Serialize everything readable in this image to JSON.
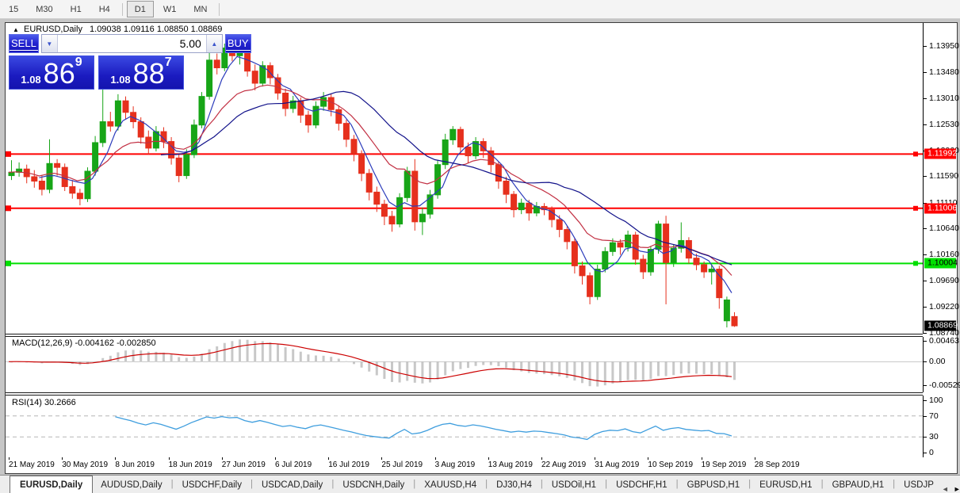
{
  "toolbar": {
    "timeframes": [
      "15",
      "M30",
      "H1",
      "H4",
      "D1",
      "W1",
      "MN"
    ],
    "active": "D1"
  },
  "chart": {
    "symbol_label": "EURUSD,Daily",
    "ohlc_text": "1.09038 1.09116 1.08850 1.08869",
    "collapse_icon": "▲",
    "trade_panel": {
      "sell_label": "SELL",
      "buy_label": "BUY",
      "volume": "5.00",
      "spin_down": "▼",
      "spin_up": "▲",
      "sell_quote": {
        "small": "1.08",
        "big": "86",
        "sup": "9"
      },
      "buy_quote": {
        "small": "1.08",
        "big": "88",
        "sup": "7"
      }
    },
    "price_range": {
      "top": 1.14375,
      "bottom": 1.08726
    },
    "price_axis": {
      "ticks": [
        {
          "label": "1.13950",
          "value": 1.1395
        },
        {
          "label": "1.13480",
          "value": 1.1348
        },
        {
          "label": "1.13010",
          "value": 1.1301
        },
        {
          "label": "1.12530",
          "value": 1.1253
        },
        {
          "label": "1.12060",
          "value": 1.1206
        },
        {
          "label": "1.11590",
          "value": 1.1159
        },
        {
          "label": "1.11110",
          "value": 1.1111
        },
        {
          "label": "1.10640",
          "value": 1.1064
        },
        {
          "label": "1.10160",
          "value": 1.1016
        },
        {
          "label": "1.09690",
          "value": 1.0969
        },
        {
          "label": "1.09220",
          "value": 1.0922
        },
        {
          "label": "1.08740",
          "value": 1.0874
        }
      ],
      "current": {
        "label": "1.08869",
        "value": 1.08869,
        "bg": "#000000",
        "text": "#ffffff"
      }
    },
    "hlines": [
      {
        "label": "1.11992",
        "value": 1.11992,
        "color": "#ff0000",
        "text": "#ffffff"
      },
      {
        "label": "1.11006",
        "value": 1.11006,
        "color": "#ff0000",
        "text": "#ffffff"
      },
      {
        "label": "1.10004",
        "value": 1.10004,
        "color": "#00df00",
        "text": "#000000"
      }
    ],
    "dates": [
      "21 May 2019",
      "30 May 2019",
      "8 Jun 2019",
      "18 Jun 2019",
      "27 Jun 2019",
      "6 Jul 2019",
      "16 Jul 2019",
      "25 Jul 2019",
      "3 Aug 2019",
      "13 Aug 2019",
      "22 Aug 2019",
      "31 Aug 2019",
      "10 Sep 2019",
      "19 Sep 2019",
      "28 Sep 2019"
    ],
    "colors": {
      "up": "#17a517",
      "down": "#e6301d",
      "ma_fast": "#2c3cbb",
      "ma_slow": "#12128a",
      "ma_red": "#c23043"
    },
    "moving_averages": [
      {
        "type": "sma",
        "period": 5,
        "color": "#2c3cbb"
      },
      {
        "type": "ema",
        "period": 13,
        "color": "#c23043"
      },
      {
        "type": "sma",
        "period": 21,
        "color": "#12128a"
      }
    ],
    "candles": [
      [
        1.116,
        1.1188,
        1.1152,
        1.1166
      ],
      [
        1.1166,
        1.1184,
        1.1158,
        1.1172
      ],
      [
        1.1172,
        1.118,
        1.1146,
        1.1158
      ],
      [
        1.1158,
        1.117,
        1.1138,
        1.115
      ],
      [
        1.115,
        1.116,
        1.1124,
        1.1135
      ],
      [
        1.1135,
        1.1226,
        1.1128,
        1.1182
      ],
      [
        1.1182,
        1.119,
        1.116,
        1.1175
      ],
      [
        1.1175,
        1.1182,
        1.1132,
        1.114
      ],
      [
        1.114,
        1.1152,
        1.1118,
        1.1128
      ],
      [
        1.1128,
        1.1136,
        1.1106,
        1.1118
      ],
      [
        1.1118,
        1.1175,
        1.1112,
        1.1168
      ],
      [
        1.1168,
        1.1232,
        1.116,
        1.122
      ],
      [
        1.122,
        1.1318,
        1.1212,
        1.1258
      ],
      [
        1.1258,
        1.1276,
        1.124,
        1.125
      ],
      [
        1.125,
        1.1308,
        1.1242,
        1.1296
      ],
      [
        1.1296,
        1.1304,
        1.1262,
        1.1275
      ],
      [
        1.1275,
        1.1286,
        1.1246,
        1.1258
      ],
      [
        1.1258,
        1.1266,
        1.1218,
        1.123
      ],
      [
        1.123,
        1.1242,
        1.1198,
        1.121
      ],
      [
        1.121,
        1.125,
        1.1204,
        1.124
      ],
      [
        1.124,
        1.1248,
        1.121,
        1.1222
      ],
      [
        1.1222,
        1.123,
        1.118,
        1.1192
      ],
      [
        1.1192,
        1.12,
        1.1148,
        1.116
      ],
      [
        1.116,
        1.1208,
        1.1154,
        1.1198
      ],
      [
        1.1198,
        1.1262,
        1.1192,
        1.1252
      ],
      [
        1.1252,
        1.1312,
        1.1246,
        1.1304
      ],
      [
        1.1304,
        1.1394,
        1.1298,
        1.137
      ],
      [
        1.137,
        1.1382,
        1.1344,
        1.1356
      ],
      [
        1.1356,
        1.14,
        1.135,
        1.1392
      ],
      [
        1.1392,
        1.1398,
        1.1368,
        1.1378
      ],
      [
        1.1378,
        1.1395,
        1.1362,
        1.1386
      ],
      [
        1.1386,
        1.139,
        1.134,
        1.135
      ],
      [
        1.135,
        1.1362,
        1.1315,
        1.1328
      ],
      [
        1.1328,
        1.1368,
        1.1322,
        1.136
      ],
      [
        1.136,
        1.1366,
        1.1326,
        1.1338
      ],
      [
        1.1338,
        1.1345,
        1.1298,
        1.131
      ],
      [
        1.131,
        1.1318,
        1.1268,
        1.1282
      ],
      [
        1.1282,
        1.1305,
        1.1274,
        1.1296
      ],
      [
        1.1296,
        1.1302,
        1.1256,
        1.127
      ],
      [
        1.127,
        1.1278,
        1.1238,
        1.1252
      ],
      [
        1.1252,
        1.1295,
        1.1246,
        1.1286
      ],
      [
        1.1286,
        1.1312,
        1.1278,
        1.1302
      ],
      [
        1.1302,
        1.1308,
        1.1268,
        1.128
      ],
      [
        1.128,
        1.1288,
        1.1242,
        1.1255
      ],
      [
        1.1255,
        1.1262,
        1.1212,
        1.1226
      ],
      [
        1.1226,
        1.1234,
        1.1186,
        1.12
      ],
      [
        1.12,
        1.1206,
        1.115,
        1.1164
      ],
      [
        1.1164,
        1.1172,
        1.1115,
        1.113
      ],
      [
        1.113,
        1.114,
        1.1094,
        1.1108
      ],
      [
        1.1108,
        1.1116,
        1.107,
        1.1086
      ],
      [
        1.1086,
        1.1096,
        1.1058,
        1.1072
      ],
      [
        1.1072,
        1.1128,
        1.1066,
        1.112
      ],
      [
        1.112,
        1.1176,
        1.1112,
        1.1168
      ],
      [
        1.1168,
        1.119,
        1.106,
        1.1076
      ],
      [
        1.1076,
        1.1102,
        1.1052,
        1.109
      ],
      [
        1.109,
        1.1134,
        1.1082,
        1.1125
      ],
      [
        1.1125,
        1.1188,
        1.1118,
        1.118
      ],
      [
        1.118,
        1.1236,
        1.1172,
        1.1225
      ],
      [
        1.1225,
        1.125,
        1.1216,
        1.1244
      ],
      [
        1.1244,
        1.1249,
        1.12,
        1.1212
      ],
      [
        1.1212,
        1.122,
        1.1182,
        1.1196
      ],
      [
        1.1196,
        1.123,
        1.119,
        1.1222
      ],
      [
        1.1222,
        1.1228,
        1.1192,
        1.1205
      ],
      [
        1.1205,
        1.1212,
        1.1166,
        1.118
      ],
      [
        1.118,
        1.1186,
        1.1136,
        1.115
      ],
      [
        1.115,
        1.1158,
        1.111,
        1.1126
      ],
      [
        1.1126,
        1.1132,
        1.1084,
        1.1098
      ],
      [
        1.1098,
        1.1118,
        1.109,
        1.111
      ],
      [
        1.111,
        1.1116,
        1.1078,
        1.1092
      ],
      [
        1.1092,
        1.1112,
        1.1086,
        1.1104
      ],
      [
        1.1104,
        1.111,
        1.1088,
        1.1098
      ],
      [
        1.1098,
        1.1104,
        1.1066,
        1.108
      ],
      [
        1.108,
        1.1088,
        1.1048,
        1.1062
      ],
      [
        1.1062,
        1.1068,
        1.1026,
        1.104
      ],
      [
        1.104,
        1.1046,
        1.0982,
        1.0996
      ],
      [
        1.0996,
        1.1004,
        1.0962,
        1.0978
      ],
      [
        1.0978,
        1.0984,
        1.0926,
        1.094
      ],
      [
        1.094,
        1.0998,
        1.0934,
        1.099
      ],
      [
        1.099,
        1.103,
        1.0984,
        1.1022
      ],
      [
        1.1022,
        1.1046,
        1.1014,
        1.1038
      ],
      [
        1.1038,
        1.1044,
        1.1016,
        1.103
      ],
      [
        1.103,
        1.106,
        1.1022,
        1.1052
      ],
      [
        1.1052,
        1.1058,
        1.0998,
        1.1008
      ],
      [
        1.1008,
        1.1016,
        1.0972,
        1.0985
      ],
      [
        1.0985,
        1.1032,
        1.0978,
        1.1026
      ],
      [
        1.1026,
        1.1078,
        1.1018,
        1.1072
      ],
      [
        1.1072,
        1.1087,
        1.0926,
        1.1002
      ],
      [
        1.1002,
        1.1035,
        1.0994,
        1.1028
      ],
      [
        1.1028,
        1.1075,
        1.102,
        1.1042
      ],
      [
        1.1042,
        1.1048,
        1.1,
        1.101
      ],
      [
        1.101,
        1.1018,
        1.0988,
        1.0998
      ],
      [
        1.0998,
        1.1004,
        1.0974,
        1.0985
      ],
      [
        1.0985,
        1.0998,
        1.0962,
        1.099
      ],
      [
        1.099,
        1.0996,
        1.0918,
        1.0938
      ],
      [
        1.0896,
        1.094,
        1.0884,
        1.0934
      ],
      [
        1.09038,
        1.09116,
        1.0885,
        1.08869
      ]
    ]
  },
  "macd": {
    "label": "MACD(12,26,9) -0.004162 -0.002850",
    "fast": 12,
    "slow": 26,
    "signal": 9,
    "range": {
      "max": 0.0055,
      "min": -0.0068
    },
    "ticks": [
      {
        "label": "0.00463",
        "value": 0.00463
      },
      {
        "label": "0.00",
        "value": 0
      },
      {
        "label": "-0.00529",
        "value": -0.00529
      }
    ],
    "hist_color": "#c8c8c8",
    "signal_color": "#cc0000"
  },
  "rsi": {
    "label": "RSI(14) 30.2666",
    "period": 14,
    "levels": [
      70,
      30
    ],
    "ticks": [
      {
        "label": "100",
        "value": 100
      },
      {
        "label": "70",
        "value": 70
      },
      {
        "label": "30",
        "value": 30
      },
      {
        "label": "0",
        "value": 0
      }
    ],
    "line_color": "#3f9ede"
  },
  "tabs": {
    "items": [
      "EURUSD,Daily",
      "AUDUSD,Daily",
      "USDCHF,Daily",
      "USDCAD,Daily",
      "USDCNH,Daily",
      "XAUUSD,H4",
      "DJ30,H4",
      "USDOil,H1",
      "USDCHF,H1",
      "GBPUSD,H1",
      "EURUSD,H1",
      "GBPAUD,H1",
      "USDJP"
    ],
    "active": "EURUSD,Daily",
    "scroll_left": "◄",
    "scroll_right": "►"
  }
}
